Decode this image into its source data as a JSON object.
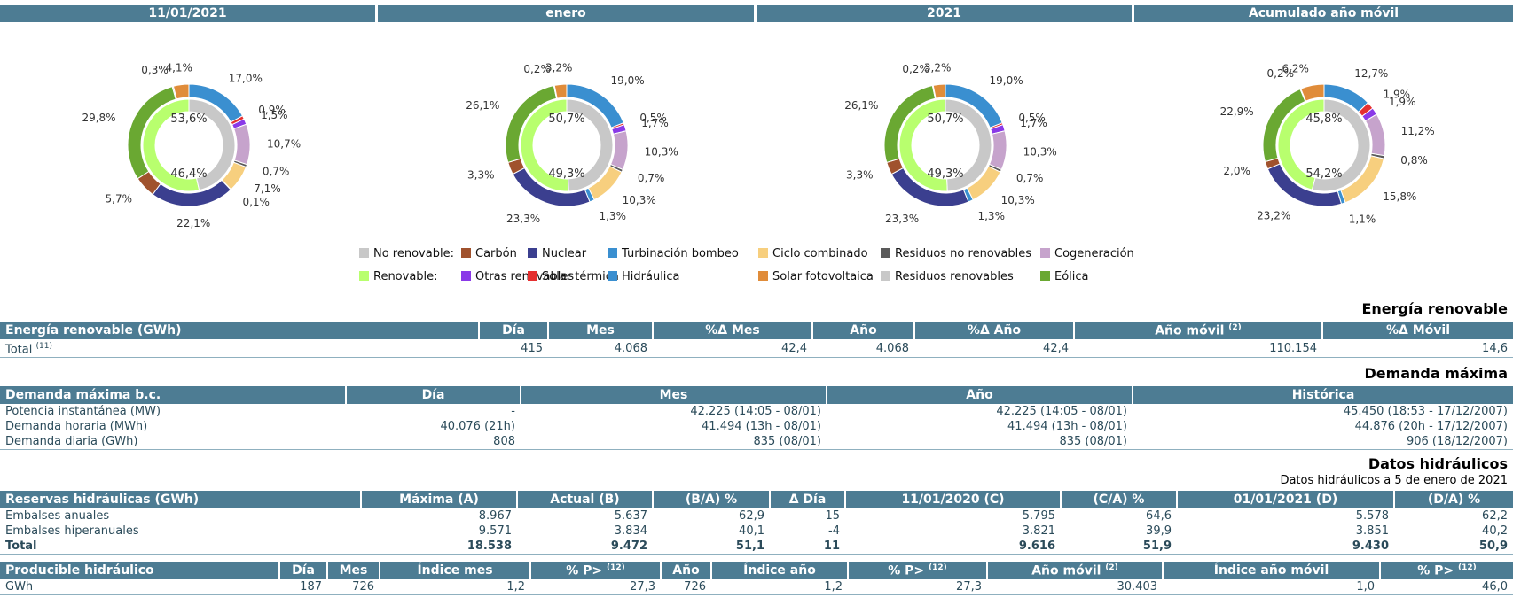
{
  "periods": [
    "11/01/2021",
    "enero",
    "2021",
    "Acumulado año móvil"
  ],
  "colors": {
    "header": "#4d7c93",
    "carbon": "#a0522d",
    "nuclear": "#3b3f8f",
    "turbinacion": "#3a8fd0",
    "ciclo": "#f7cf7e",
    "residuos_no_ren": "#5a5a5a",
    "cogeneracion": "#c6a3cc",
    "no_renovable": "#c8c8c8",
    "renovable": "#b8ff6e",
    "otras_renovables": "#8a39e8",
    "solar_termica": "#e53030",
    "hidraulica": "#3a8fd0",
    "solar_fv": "#e08c3a",
    "residuos_ren": "#c8c8c8",
    "eolica": "#6aa832"
  },
  "chart_data": [
    {
      "type": "pie",
      "title": "11/01/2021",
      "inner": {
        "renovable": "53,6%",
        "no_renovable": "46,4%",
        "renovable_value": 53.6,
        "no_renovable_value": 46.4
      },
      "outer": [
        {
          "name": "Hidráulica",
          "value": 17.0,
          "label": "17,0%",
          "color": "hidraulica"
        },
        {
          "name": "Solar térmica",
          "value": 0.9,
          "label": "0,9%",
          "color": "solar_termica"
        },
        {
          "name": "Otras renovables",
          "value": 1.5,
          "label": "1,5%",
          "color": "otras_renovables"
        },
        {
          "name": "Cogeneración",
          "value": 10.7,
          "label": "10,7%",
          "color": "cogeneracion"
        },
        {
          "name": "Residuos no renovables",
          "value": 0.7,
          "label": "0,7%",
          "color": "residuos_no_ren"
        },
        {
          "name": "Ciclo combinado",
          "value": 7.1,
          "label": "7,1%",
          "color": "ciclo"
        },
        {
          "name": "Turbinación bombeo",
          "value": 0.1,
          "label": "0,1%",
          "color": "turbinacion"
        },
        {
          "name": "Nuclear",
          "value": 22.1,
          "label": "22,1%",
          "color": "nuclear"
        },
        {
          "name": "Carbón",
          "value": 5.7,
          "label": "5,7%",
          "color": "carbon"
        },
        {
          "name": "Eólica",
          "value": 29.8,
          "label": "29,8%",
          "color": "eolica"
        },
        {
          "name": "Residuos renovables",
          "value": 0.3,
          "label": "0,3%",
          "color": "residuos_ren"
        },
        {
          "name": "Solar fotovoltaica",
          "value": 4.1,
          "label": "4,1%",
          "color": "solar_fv"
        }
      ]
    },
    {
      "type": "pie",
      "title": "enero",
      "inner": {
        "renovable": "50,7%",
        "no_renovable": "49,3%",
        "renovable_value": 50.7,
        "no_renovable_value": 49.3
      },
      "outer": [
        {
          "name": "Hidráulica",
          "value": 19.0,
          "label": "19,0%",
          "color": "hidraulica"
        },
        {
          "name": "Solar térmica",
          "value": 0.5,
          "label": "0,5%",
          "color": "solar_termica"
        },
        {
          "name": "Otras renovables",
          "value": 1.7,
          "label": "1,7%",
          "color": "otras_renovables"
        },
        {
          "name": "Cogeneración",
          "value": 10.3,
          "label": "10,3%",
          "color": "cogeneracion"
        },
        {
          "name": "Residuos no renovables",
          "value": 0.7,
          "label": "0,7%",
          "color": "residuos_no_ren"
        },
        {
          "name": "Ciclo combinado",
          "value": 10.3,
          "label": "10,3%",
          "color": "ciclo"
        },
        {
          "name": "Turbinación bombeo",
          "value": 1.3,
          "label": "1,3%",
          "color": "turbinacion"
        },
        {
          "name": "Nuclear",
          "value": 23.3,
          "label": "23,3%",
          "color": "nuclear"
        },
        {
          "name": "Carbón",
          "value": 3.3,
          "label": "3,3%",
          "color": "carbon"
        },
        {
          "name": "Eólica",
          "value": 26.1,
          "label": "26,1%",
          "color": "eolica"
        },
        {
          "name": "Residuos renovables",
          "value": 0.2,
          "label": "0,2%",
          "color": "residuos_ren"
        },
        {
          "name": "Solar fotovoltaica",
          "value": 3.2,
          "label": "3,2%",
          "color": "solar_fv"
        }
      ]
    },
    {
      "type": "pie",
      "title": "2021",
      "inner": {
        "renovable": "50,7%",
        "no_renovable": "49,3%",
        "renovable_value": 50.7,
        "no_renovable_value": 49.3
      },
      "outer": [
        {
          "name": "Hidráulica",
          "value": 19.0,
          "label": "19,0%",
          "color": "hidraulica"
        },
        {
          "name": "Solar térmica",
          "value": 0.5,
          "label": "0,5%",
          "color": "solar_termica"
        },
        {
          "name": "Otras renovables",
          "value": 1.7,
          "label": "1,7%",
          "color": "otras_renovables"
        },
        {
          "name": "Cogeneración",
          "value": 10.3,
          "label": "10,3%",
          "color": "cogeneracion"
        },
        {
          "name": "Residuos no renovables",
          "value": 0.7,
          "label": "0,7%",
          "color": "residuos_no_ren"
        },
        {
          "name": "Ciclo combinado",
          "value": 10.3,
          "label": "10,3%",
          "color": "ciclo"
        },
        {
          "name": "Turbinación bombeo",
          "value": 1.3,
          "label": "1,3%",
          "color": "turbinacion"
        },
        {
          "name": "Nuclear",
          "value": 23.3,
          "label": "23,3%",
          "color": "nuclear"
        },
        {
          "name": "Carbón",
          "value": 3.3,
          "label": "3,3%",
          "color": "carbon"
        },
        {
          "name": "Eólica",
          "value": 26.1,
          "label": "26,1%",
          "color": "eolica"
        },
        {
          "name": "Residuos renovables",
          "value": 0.2,
          "label": "0,2%",
          "color": "residuos_ren"
        },
        {
          "name": "Solar fotovoltaica",
          "value": 3.2,
          "label": "3,2%",
          "color": "solar_fv"
        }
      ]
    },
    {
      "type": "pie",
      "title": "Acumulado año móvil",
      "inner": {
        "renovable": "45,8%",
        "no_renovable": "54,2%",
        "renovable_value": 45.8,
        "no_renovable_value": 54.2
      },
      "outer": [
        {
          "name": "Hidráulica",
          "value": 12.7,
          "label": "12,7%",
          "color": "hidraulica"
        },
        {
          "name": "Solar térmica",
          "value": 1.9,
          "label": "1,9%",
          "color": "solar_termica"
        },
        {
          "name": "Otras renovables",
          "value": 1.9,
          "label": "1,9%",
          "color": "otras_renovables"
        },
        {
          "name": "Cogeneración",
          "value": 11.2,
          "label": "11,2%",
          "color": "cogeneracion"
        },
        {
          "name": "Residuos no renovables",
          "value": 0.8,
          "label": "0,8%",
          "color": "residuos_no_ren"
        },
        {
          "name": "Ciclo combinado",
          "value": 15.8,
          "label": "15,8%",
          "color": "ciclo"
        },
        {
          "name": "Turbinación bombeo",
          "value": 1.1,
          "label": "1,1%",
          "color": "turbinacion"
        },
        {
          "name": "Nuclear",
          "value": 23.2,
          "label": "23,2%",
          "color": "nuclear"
        },
        {
          "name": "Carbón",
          "value": 2.0,
          "label": "2,0%",
          "color": "carbon"
        },
        {
          "name": "Eólica",
          "value": 22.9,
          "label": "22,9%",
          "color": "eolica"
        },
        {
          "name": "Residuos renovables",
          "value": 0.2,
          "label": "0,2%",
          "color": "residuos_ren"
        },
        {
          "name": "Solar fotovoltaica",
          "value": 6.2,
          "label": "6,2%",
          "color": "solar_fv"
        }
      ]
    }
  ],
  "legend": {
    "row1": [
      {
        "label": "No renovable:",
        "color": "no_renovable"
      },
      {
        "label": "Carbón",
        "color": "carbon"
      },
      {
        "label": "Nuclear",
        "color": "nuclear"
      },
      {
        "label": "Turbinación bombeo",
        "color": "turbinacion"
      },
      {
        "label": "Ciclo combinado",
        "color": "ciclo"
      },
      {
        "label": "Residuos no renovables",
        "color": "residuos_no_ren"
      },
      {
        "label": "Cogeneración",
        "color": "cogeneracion"
      }
    ],
    "row2": [
      {
        "label": "Renovable:",
        "color": "renovable"
      },
      {
        "label": "Otras renovables",
        "color": "otras_renovables"
      },
      {
        "label": "Solar térmica",
        "color": "solar_termica"
      },
      {
        "label": "Hidráulica",
        "color": "hidraulica"
      },
      {
        "label": "Solar fotovoltaica",
        "color": "solar_fv"
      },
      {
        "label": "Residuos renovables",
        "color": "residuos_ren"
      },
      {
        "label": "Eólica",
        "color": "eolica"
      }
    ]
  },
  "renovable": {
    "section_title": "Energía renovable",
    "headers": [
      "Energía renovable (GWh)",
      "Día",
      "Mes",
      "%Δ Mes",
      "Año",
      "%Δ Año",
      "Año móvil",
      "%Δ Móvil"
    ],
    "note_movil": "(2)",
    "row_label": "Total",
    "row_note": "(11)",
    "row": [
      "415",
      "4.068",
      "42,4",
      "4.068",
      "42,4",
      "110.154",
      "14,6"
    ]
  },
  "demanda": {
    "section_title": "Demanda máxima",
    "headers": [
      "Demanda máxima b.c.",
      "Día",
      "Mes",
      "Año",
      "Histórica"
    ],
    "rows": [
      [
        "Potencia instantánea (MW)",
        "-",
        "42.225 (14:05 - 08/01)",
        "42.225 (14:05 - 08/01)",
        "45.450 (18:53 - 17/12/2007)"
      ],
      [
        "Demanda horaria (MWh)",
        "40.076 (21h)",
        "41.494 (13h - 08/01)",
        "41.494 (13h - 08/01)",
        "44.876 (20h - 17/12/2007)"
      ],
      [
        "Demanda diaria (GWh)",
        "808",
        "835 (08/01)",
        "835 (08/01)",
        "906 (18/12/2007)"
      ]
    ]
  },
  "hidraulicos": {
    "section_title": "Datos hidráulicos",
    "subtitle": "Datos hidráulicos a 5 de enero de 2021",
    "headers": [
      "Reservas hidráulicas (GWh)",
      "Máxima (A)",
      "Actual (B)",
      "(B/A) %",
      "Δ Día",
      "11/01/2020 (C)",
      "(C/A) %",
      "01/01/2021 (D)",
      "(D/A) %"
    ],
    "rows": [
      [
        "Embalses anuales",
        "8.967",
        "5.637",
        "62,9",
        "15",
        "5.795",
        "64,6",
        "5.578",
        "62,2"
      ],
      [
        "Embalses hiperanuales",
        "9.571",
        "3.834",
        "40,1",
        "-4",
        "3.821",
        "39,9",
        "3.851",
        "40,2"
      ],
      [
        "Total",
        "18.538",
        "9.472",
        "51,1",
        "11",
        "9.616",
        "51,9",
        "9.430",
        "50,9"
      ]
    ]
  },
  "producible": {
    "headers": [
      "Producible hidráulico",
      "Día",
      "Mes",
      "Índice mes",
      "% P>",
      "Año",
      "Índice año",
      "% P>",
      "Año móvil",
      "Índice año móvil",
      "% P>"
    ],
    "note_p": "(12)",
    "note_movil": "(2)",
    "row": [
      "GWh",
      "187",
      "726",
      "1,2",
      "27,3",
      "726",
      "1,2",
      "27,3",
      "30.403",
      "1,0",
      "46,0"
    ]
  }
}
